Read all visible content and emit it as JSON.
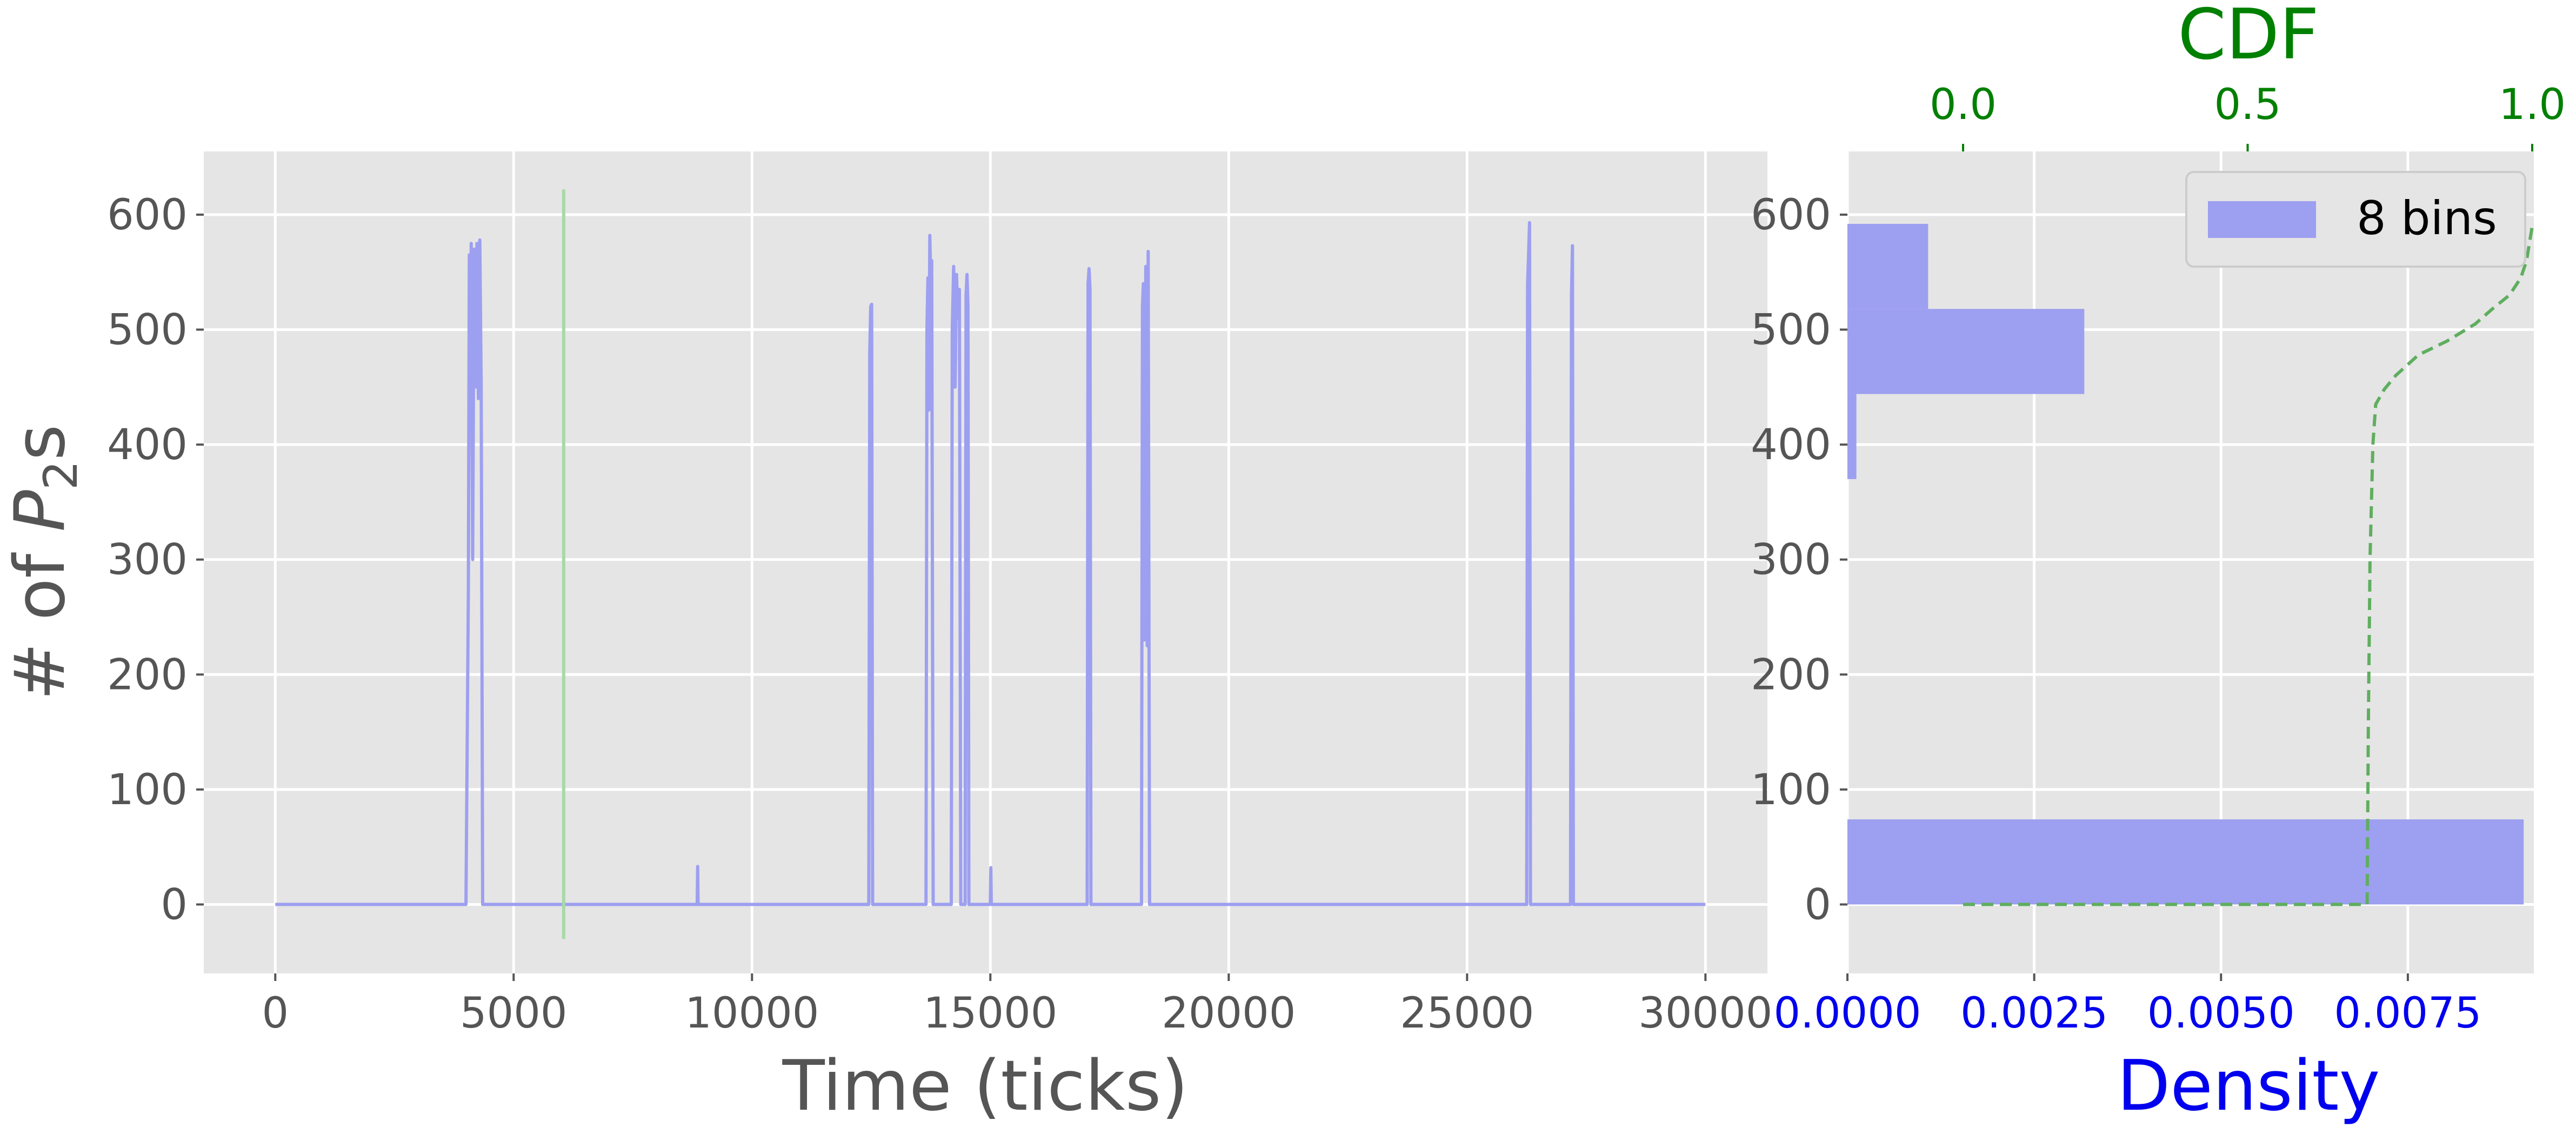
{
  "chart_data": [
    {
      "type": "line",
      "title": "",
      "xlabel": "Time (ticks)",
      "ylabel_prefix": "# of ",
      "ylabel_var": "P",
      "ylabel_sub": "2",
      "ylabel_suffix": "s",
      "xlim": [
        -1500,
        31300
      ],
      "ylim": [
        -60,
        655
      ],
      "xticks": [
        0,
        5000,
        10000,
        15000,
        20000,
        25000,
        30000
      ],
      "yticks": [
        0,
        100,
        200,
        300,
        400,
        500,
        600
      ],
      "series": [
        {
          "color": "#9d9ff0",
          "points": [
            [
              0,
              0
            ],
            [
              4000,
              0
            ],
            [
              4050,
              270
            ],
            [
              4070,
              565
            ],
            [
              4090,
              430
            ],
            [
              4110,
              575
            ],
            [
              4140,
              300
            ],
            [
              4170,
              570
            ],
            [
              4200,
              450
            ],
            [
              4230,
              575
            ],
            [
              4260,
              440
            ],
            [
              4290,
              578
            ],
            [
              4320,
              450
            ],
            [
              4350,
              0
            ],
            [
              8850,
              0
            ],
            [
              8860,
              33
            ],
            [
              8870,
              0
            ],
            [
              12450,
              0
            ],
            [
              12470,
              480
            ],
            [
              12490,
              520
            ],
            [
              12510,
              522
            ],
            [
              12530,
              0
            ],
            [
              13650,
              0
            ],
            [
              13670,
              500
            ],
            [
              13690,
              545
            ],
            [
              13710,
              430
            ],
            [
              13730,
              582
            ],
            [
              13750,
              540
            ],
            [
              13770,
              560
            ],
            [
              13800,
              0
            ],
            [
              14180,
              0
            ],
            [
              14200,
              500
            ],
            [
              14230,
              555
            ],
            [
              14260,
              450
            ],
            [
              14290,
              548
            ],
            [
              14320,
              510
            ],
            [
              14350,
              535
            ],
            [
              14380,
              0
            ],
            [
              14470,
              0
            ],
            [
              14490,
              530
            ],
            [
              14510,
              548
            ],
            [
              14530,
              520
            ],
            [
              14550,
              0
            ],
            [
              15000,
              0
            ],
            [
              15010,
              32
            ],
            [
              15020,
              0
            ],
            [
              17030,
              0
            ],
            [
              17050,
              540
            ],
            [
              17070,
              553
            ],
            [
              17090,
              535
            ],
            [
              17110,
              0
            ],
            [
              18170,
              0
            ],
            [
              18190,
              520
            ],
            [
              18210,
              540
            ],
            [
              18230,
              230
            ],
            [
              18260,
              555
            ],
            [
              18290,
              225
            ],
            [
              18310,
              568
            ],
            [
              18340,
              0
            ],
            [
              26250,
              0
            ],
            [
              26270,
              540
            ],
            [
              26290,
              565
            ],
            [
              26310,
              593
            ],
            [
              26330,
              0
            ],
            [
              27170,
              0
            ],
            [
              27190,
              530
            ],
            [
              27210,
              573
            ],
            [
              27230,
              0
            ],
            [
              30000,
              0
            ]
          ]
        },
        {
          "color": "#a8d8a8",
          "points": [
            [
              6050,
              -30
            ],
            [
              6050,
              622
            ]
          ]
        }
      ]
    },
    {
      "type": "bar",
      "orientation": "horizontal",
      "xlabel": "Density",
      "x2label": "CDF",
      "xlim": [
        0,
        0.00915
      ],
      "ylim": [
        -60,
        655
      ],
      "xticks": [
        "0.0000",
        "0.0025",
        "0.0050",
        "0.0075"
      ],
      "xtick_values": [
        0,
        0.0025,
        0.005,
        0.0075
      ],
      "x2ticks": [
        "0.0",
        "0.5",
        "1.0"
      ],
      "x2tick_values": [
        0,
        0.5,
        1
      ],
      "yticks": [
        0,
        100,
        200,
        300,
        400,
        500,
        600
      ],
      "legend": {
        "label": "8 bins",
        "position": "top-right"
      },
      "bins": [
        {
          "y0": 0,
          "y1": 74,
          "density": 0.00905
        },
        {
          "y0": 370,
          "y1": 444,
          "density": 0.00012
        },
        {
          "y0": 444,
          "y1": 518,
          "density": 0.00317
        },
        {
          "y0": 518,
          "y1": 592,
          "density": 0.00108
        }
      ],
      "cdf": [
        [
          0,
          0
        ],
        [
          0.71,
          0
        ],
        [
          0.712,
          150
        ],
        [
          0.715,
          300
        ],
        [
          0.72,
          400
        ],
        [
          0.725,
          435
        ],
        [
          0.74,
          448
        ],
        [
          0.76,
          460
        ],
        [
          0.8,
          478
        ],
        [
          0.85,
          490
        ],
        [
          0.9,
          505
        ],
        [
          0.93,
          518
        ],
        [
          0.96,
          530
        ],
        [
          0.98,
          545
        ],
        [
          0.99,
          560
        ],
        [
          1.0,
          590
        ]
      ],
      "cdf_color": "#5fae5f",
      "bar_color": "#9d9ff0"
    }
  ]
}
